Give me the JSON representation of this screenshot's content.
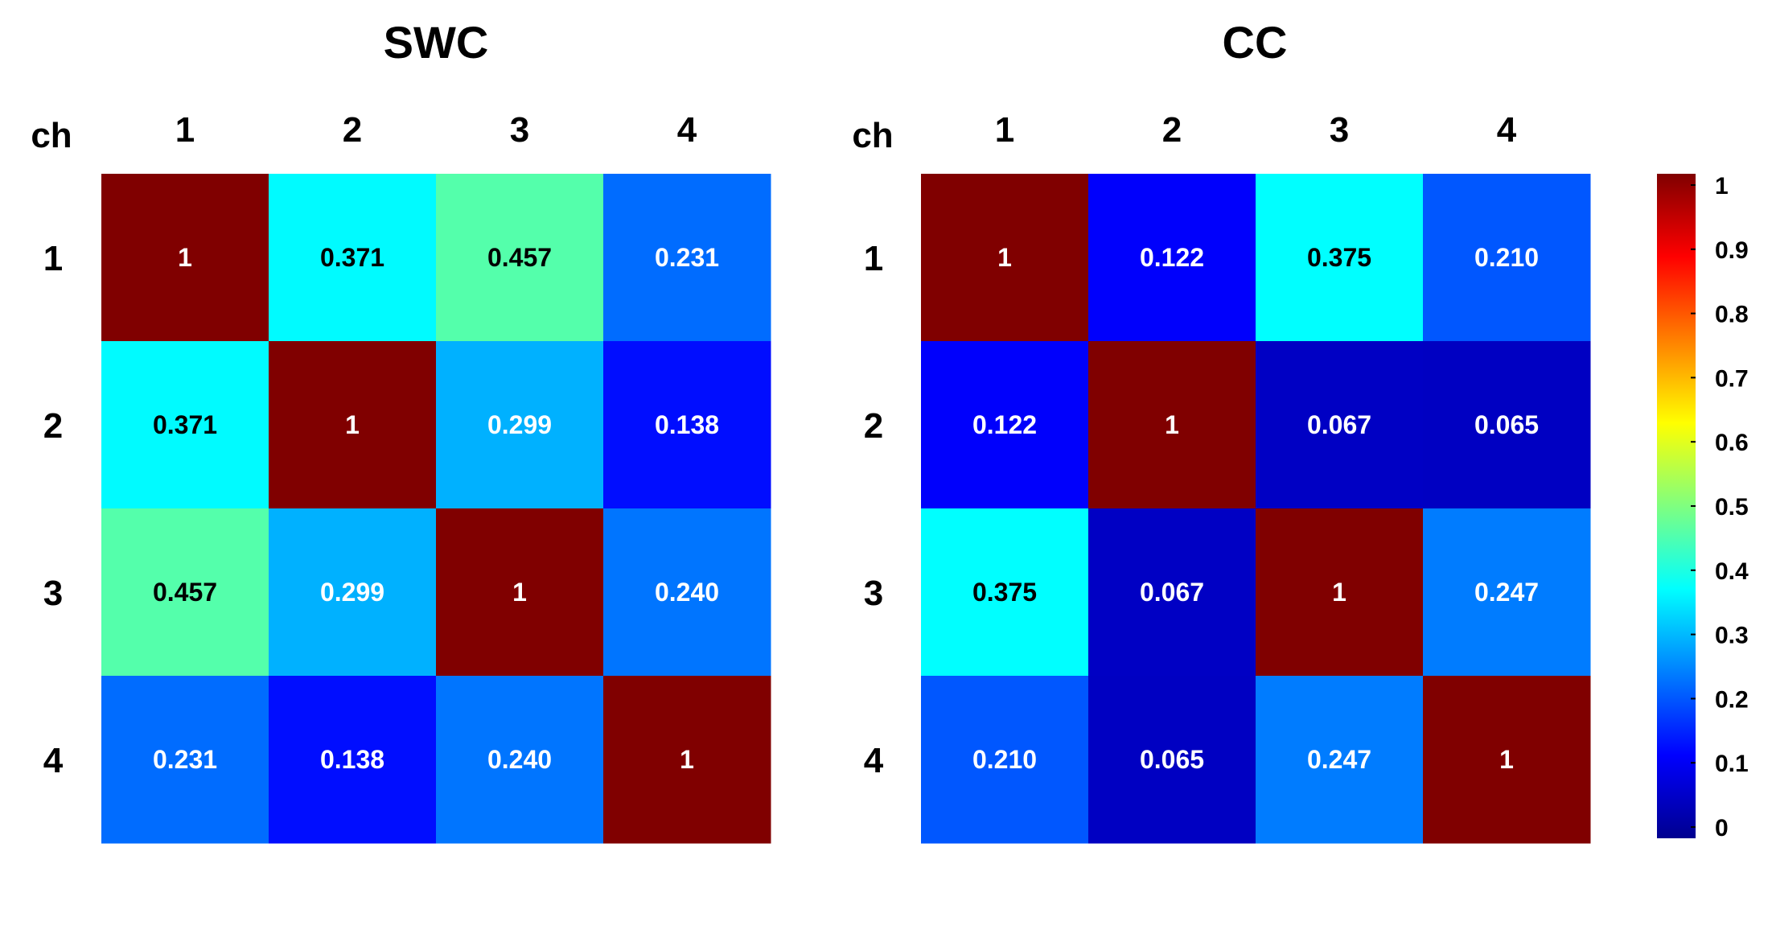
{
  "chart_data": [
    {
      "type": "heatmap",
      "title": "SWC",
      "corner_label": "ch",
      "x_categories": [
        "1",
        "2",
        "3",
        "4"
      ],
      "y_categories": [
        "1",
        "2",
        "3",
        "4"
      ],
      "values": [
        [
          1,
          0.371,
          0.457,
          0.231
        ],
        [
          0.371,
          1,
          0.299,
          0.138
        ],
        [
          0.457,
          0.299,
          1,
          0.24
        ],
        [
          0.231,
          0.138,
          0.24,
          1
        ]
      ],
      "cell_labels": [
        [
          "1",
          "0.371",
          "0.457",
          "0.231"
        ],
        [
          "0.371",
          "1",
          "0.299",
          "0.138"
        ],
        [
          "0.457",
          "0.299",
          "1",
          "0.240"
        ],
        [
          "0.231",
          "0.138",
          "0.240",
          "1"
        ]
      ],
      "colormap": "jet",
      "clim": [
        0,
        1
      ]
    },
    {
      "type": "heatmap",
      "title": "CC",
      "corner_label": "ch",
      "x_categories": [
        "1",
        "2",
        "3",
        "4"
      ],
      "y_categories": [
        "1",
        "2",
        "3",
        "4"
      ],
      "values": [
        [
          1,
          0.122,
          0.375,
          0.21
        ],
        [
          0.122,
          1,
          0.067,
          0.065
        ],
        [
          0.375,
          0.067,
          1,
          0.247
        ],
        [
          0.21,
          0.065,
          0.247,
          1
        ]
      ],
      "cell_labels": [
        [
          "1",
          "0.122",
          "0.375",
          "0.210"
        ],
        [
          "0.122",
          "1",
          "0.067",
          "0.065"
        ],
        [
          "0.375",
          "0.067",
          "1",
          "0.247"
        ],
        [
          "0.210",
          "0.065",
          "0.247",
          "1"
        ]
      ],
      "colormap": "jet",
      "clim": [
        0,
        1
      ]
    }
  ],
  "colorbar": {
    "colormap": "jet",
    "range": [
      0,
      1
    ],
    "ticks": [
      "0",
      "0.1",
      "0.2",
      "0.3",
      "0.4",
      "0.5",
      "0.6",
      "0.7",
      "0.8",
      "0.9",
      "1"
    ]
  }
}
